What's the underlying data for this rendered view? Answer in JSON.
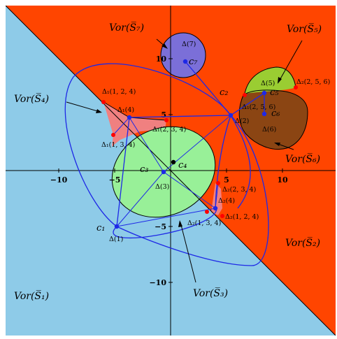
{
  "colors": {
    "s1_region": "#8ecbe8",
    "s2_region": "#ff4500",
    "s7_region": "#7b6fd8",
    "s5_region": "#9acd32",
    "s6_region": "#8b4513",
    "s3_region": "#98f098",
    "s4_region": "#f08080",
    "curve": "#1e28e6",
    "center_point": "#1e28e6",
    "vertex_point": "#ff0000"
  },
  "axes": {
    "x_ticks": [
      {
        "value": -10,
        "label": "−10"
      },
      {
        "value": -5,
        "label": "−5"
      },
      {
        "value": 5,
        "label": "5"
      },
      {
        "value": 10,
        "label": "10"
      }
    ],
    "y_ticks": [
      {
        "value": 10,
        "label": "10"
      },
      {
        "value": 5,
        "label": "5"
      },
      {
        "value": -5,
        "label": "−5"
      },
      {
        "value": -10,
        "label": "−10"
      }
    ]
  },
  "region_labels": {
    "s1": "Vor(S̅₁)",
    "s2": "Vor(S̅₂)",
    "s3": "Vor(S̅₃)",
    "s4": "Vor(S̅₄)",
    "s5": "Vor(S̅₅)",
    "s6": "Vor(S̅₆)",
    "s7": "Vor(S̅₇)"
  },
  "centers": {
    "c1": "c₁",
    "c2": "c₂",
    "c3": "c₃",
    "c4": "c₄",
    "c5": "c₅",
    "c6": "c₆",
    "c7": "c₇"
  },
  "deltas": {
    "d1": "Δ(1)",
    "d2": "Δ(2)",
    "d3": "Δ(3)",
    "d5": "Δ(5)",
    "d6": "Δ(6)",
    "d7": "Δ(7)",
    "d1_4": "Δ₁(4)",
    "d2_4": "Δ₂(4)",
    "d1_124": "Δ₁(1, 2, 4)",
    "d1_234": "Δ₁(2, 3, 4)",
    "d1_134": "Δ₁(1, 3, 4)",
    "d1_256": "Δ₁(2, 5, 6)",
    "d2_256": "Δ₂(2, 5, 6)",
    "d2_234": "Δ₂(2, 3, 4)",
    "d2_124": "Δ₂(1, 2, 4)",
    "d2_134": "Δ₂(1, 3, 4)"
  }
}
